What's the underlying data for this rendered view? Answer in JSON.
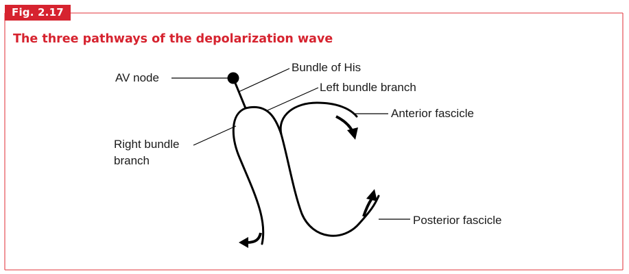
{
  "figure": {
    "tag": "Fig. 2.17",
    "title": "The three pathways of the depolarization wave",
    "accent_color": "#d6232f",
    "frame_color": "#e85a60",
    "ink_color": "#000000"
  },
  "labels": {
    "av_node": "AV node",
    "bundle_of_his": "Bundle of His",
    "left_bundle_branch": "Left bundle branch",
    "anterior_fascicle": "Anterior fascicle",
    "right_bundle_branch_line1": "Right bundle",
    "right_bundle_branch_line2": "branch",
    "posterior_fascicle": "Posterior fascicle"
  }
}
